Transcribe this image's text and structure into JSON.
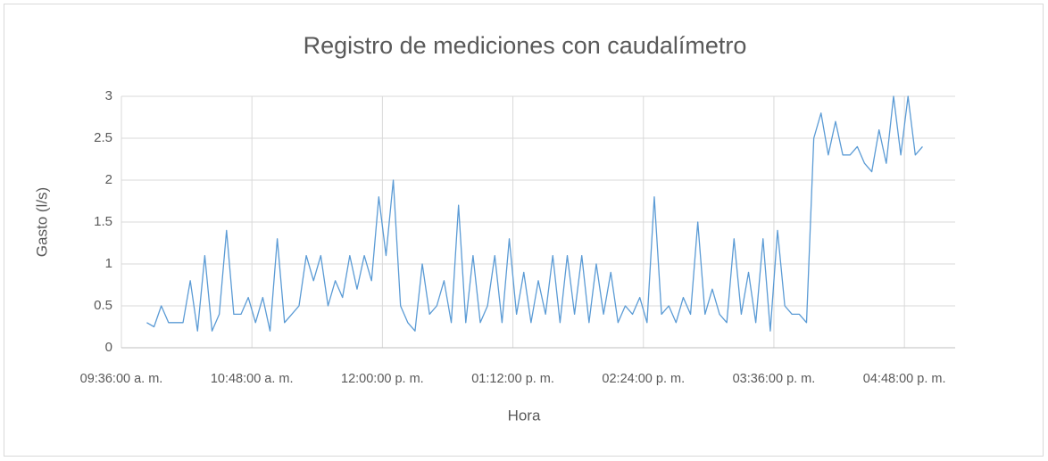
{
  "chart_data": {
    "type": "line",
    "title": "Registro de mediciones con caudalímetro",
    "xlabel": "Hora",
    "ylabel": "Gasto (l/s)",
    "color": "#5b9bd5",
    "grid": true,
    "ylim": [
      0,
      3
    ],
    "yticks": [
      0,
      0.5,
      1,
      1.5,
      2,
      2.5,
      3
    ],
    "xlim": [
      "09:36:00 a. m.",
      "05:16:00 p. m."
    ],
    "xticks": [
      "09:36:00 a. m.",
      "10:48:00 a. m.",
      "12:00:00 p. m.",
      "01:12:00 p. m.",
      "02:24:00 p. m.",
      "03:36:00 p. m.",
      "04:48:00 p. m."
    ],
    "x": [
      "09:50:00 a. m.",
      "09:54:00 a. m.",
      "09:58:00 a. m.",
      "10:02:00 a. m.",
      "10:06:00 a. m.",
      "10:10:00 a. m.",
      "10:14:00 a. m.",
      "10:18:00 a. m.",
      "10:22:00 a. m.",
      "10:26:00 a. m.",
      "10:30:00 a. m.",
      "10:34:00 a. m.",
      "10:38:00 a. m.",
      "10:42:00 a. m.",
      "10:46:00 a. m.",
      "10:50:00 a. m.",
      "10:54:00 a. m.",
      "10:58:00 a. m.",
      "11:02:00 a. m.",
      "11:06:00 a. m.",
      "11:10:00 a. m.",
      "11:14:00 a. m.",
      "11:18:00 a. m.",
      "11:22:00 a. m.",
      "11:26:00 a. m.",
      "11:30:00 a. m.",
      "11:34:00 a. m.",
      "11:38:00 a. m.",
      "11:42:00 a. m.",
      "11:46:00 a. m.",
      "11:50:00 a. m.",
      "11:54:00 a. m.",
      "11:58:00 a. m.",
      "12:02:00 p. m.",
      "12:06:00 p. m.",
      "12:10:00 p. m.",
      "12:14:00 p. m.",
      "12:18:00 p. m.",
      "12:22:00 p. m.",
      "12:26:00 p. m.",
      "12:30:00 p. m.",
      "12:34:00 p. m.",
      "12:38:00 p. m.",
      "12:42:00 p. m.",
      "12:46:00 p. m.",
      "12:50:00 p. m.",
      "12:54:00 p. m.",
      "12:58:00 p. m.",
      "01:02:00 p. m.",
      "01:06:00 p. m.",
      "01:10:00 p. m.",
      "01:14:00 p. m.",
      "01:18:00 p. m.",
      "01:22:00 p. m.",
      "01:26:00 p. m.",
      "01:30:00 p. m.",
      "01:34:00 p. m.",
      "01:38:00 p. m.",
      "01:42:00 p. m.",
      "01:46:00 p. m.",
      "01:50:00 p. m.",
      "01:54:00 p. m.",
      "01:58:00 p. m.",
      "02:02:00 p. m.",
      "02:06:00 p. m.",
      "02:10:00 p. m.",
      "02:14:00 p. m.",
      "02:18:00 p. m.",
      "02:22:00 p. m.",
      "02:26:00 p. m.",
      "02:30:00 p. m.",
      "02:34:00 p. m.",
      "02:38:00 p. m.",
      "02:42:00 p. m.",
      "02:46:00 p. m.",
      "02:50:00 p. m.",
      "02:54:00 p. m.",
      "02:58:00 p. m.",
      "03:02:00 p. m.",
      "03:06:00 p. m.",
      "03:10:00 p. m.",
      "03:14:00 p. m.",
      "03:18:00 p. m.",
      "03:22:00 p. m.",
      "03:26:00 p. m.",
      "03:30:00 p. m.",
      "03:34:00 p. m.",
      "03:38:00 p. m.",
      "03:42:00 p. m.",
      "03:46:00 p. m.",
      "03:50:00 p. m.",
      "03:54:00 p. m.",
      "03:58:00 p. m.",
      "04:02:00 p. m.",
      "04:06:00 p. m.",
      "04:10:00 p. m.",
      "04:14:00 p. m.",
      "04:18:00 p. m.",
      "04:22:00 p. m.",
      "04:26:00 p. m.",
      "04:30:00 p. m.",
      "04:34:00 p. m.",
      "04:38:00 p. m.",
      "04:42:00 p. m.",
      "04:46:00 p. m.",
      "04:50:00 p. m.",
      "04:54:00 p. m.",
      "04:58:00 p. m."
    ],
    "values": [
      0.3,
      0.25,
      0.5,
      0.3,
      0.3,
      0.3,
      0.8,
      0.2,
      1.1,
      0.2,
      0.4,
      1.4,
      0.4,
      0.4,
      0.6,
      0.3,
      0.6,
      0.2,
      1.3,
      0.3,
      0.4,
      0.5,
      1.1,
      0.8,
      1.1,
      0.5,
      0.8,
      0.6,
      1.1,
      0.7,
      1.1,
      0.8,
      1.8,
      1.1,
      2.0,
      0.5,
      0.3,
      0.2,
      1.0,
      0.4,
      0.5,
      0.8,
      0.3,
      1.7,
      0.3,
      1.1,
      0.3,
      0.5,
      1.1,
      0.3,
      1.3,
      0.4,
      0.9,
      0.3,
      0.8,
      0.4,
      1.1,
      0.3,
      1.1,
      0.4,
      1.1,
      0.3,
      1.0,
      0.4,
      0.9,
      0.3,
      0.5,
      0.4,
      0.6,
      0.3,
      1.8,
      0.4,
      0.5,
      0.3,
      0.6,
      0.4,
      1.5,
      0.4,
      0.7,
      0.4,
      0.3,
      1.3,
      0.4,
      0.9,
      0.3,
      1.3,
      0.2,
      1.4,
      0.5,
      0.4,
      0.4,
      0.3,
      2.5,
      2.8,
      2.3,
      2.7,
      2.3,
      2.3,
      2.4,
      2.2,
      2.1,
      2.6,
      2.2,
      3.0,
      2.3,
      3.0,
      2.3,
      2.4
    ]
  }
}
